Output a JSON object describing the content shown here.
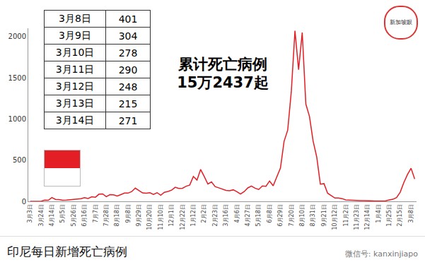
{
  "chart_data": {
    "type": "line",
    "title": "印尼每日新增死亡病例",
    "categories": [
      "3月3日",
      null,
      null,
      "3月24日",
      null,
      null,
      "4月14日",
      null,
      null,
      "5月5日",
      null,
      null,
      "5月26日",
      null,
      null,
      "6月16日",
      null,
      null,
      "7月7日",
      null,
      null,
      "7月28日",
      null,
      null,
      "8月18日",
      null,
      null,
      "9月8日",
      null,
      null,
      "9月29日",
      null,
      null,
      "10月20日",
      null,
      null,
      "11月10日",
      null,
      null,
      "12月1日",
      null,
      null,
      "12月22日",
      null,
      null,
      "1月12日",
      null,
      null,
      "2月2日",
      null,
      null,
      "2月23日",
      null,
      null,
      "3月16日",
      null,
      null,
      "4月6日",
      null,
      null,
      "4月27日",
      null,
      null,
      "5月18日",
      null,
      null,
      "6月8日",
      null,
      null,
      "6月29日",
      null,
      null,
      "7月20日",
      null,
      null,
      "8月10日",
      null,
      null,
      "8月31日",
      null,
      null,
      "9月21日",
      null,
      null,
      "10月12日",
      null,
      null,
      "11月2日",
      null,
      null,
      "11月23日",
      null,
      null,
      "12月14日",
      null,
      null,
      "1月4日",
      null,
      null,
      "1月25日",
      null,
      null,
      "2月15日",
      null,
      null,
      "3月8日",
      null
    ],
    "values": [
      0,
      0,
      1,
      1,
      14,
      12,
      46,
      24,
      22,
      13,
      16,
      21,
      23,
      31,
      33,
      45,
      35,
      56,
      50,
      87,
      90,
      57,
      81,
      79,
      65,
      82,
      100,
      100,
      118,
      160,
      128,
      102,
      98,
      105,
      85,
      105,
      75,
      110,
      120,
      136,
      171,
      156,
      159,
      183,
      198,
      302,
      258,
      387,
      301,
      210,
      235,
      178,
      164,
      150,
      133,
      128,
      140,
      117,
      89,
      118,
      163,
      185,
      160,
      144,
      186,
      183,
      247,
      189,
      294,
      405,
      728,
      864,
      1338,
      2069,
      1598,
      2048,
      1180,
      1030,
      731,
      538,
      208,
      215,
      99,
      67,
      40,
      40,
      33,
      17,
      14,
      10,
      12,
      8,
      8,
      4,
      6,
      5,
      4,
      6,
      7,
      17,
      25,
      46,
      111,
      227,
      325,
      401,
      271
    ],
    "color": "#e31e24",
    "ylim": [
      0,
      2100
    ],
    "yticks": [
      0,
      500,
      1000,
      1500,
      2000
    ],
    "grid": false,
    "annotation": [
      "累计死亡病例",
      "15万2437起"
    ]
  },
  "table": {
    "rows": [
      [
        "3月8日",
        401
      ],
      [
        "3月9日",
        304
      ],
      [
        "3月10日",
        278
      ],
      [
        "3月11日",
        290
      ],
      [
        "3月12日",
        248
      ],
      [
        "3月13日",
        215
      ],
      [
        "3月14日",
        271
      ]
    ]
  },
  "watermark": "微信号: kanxinjiapo",
  "logo": "新加坡眼"
}
